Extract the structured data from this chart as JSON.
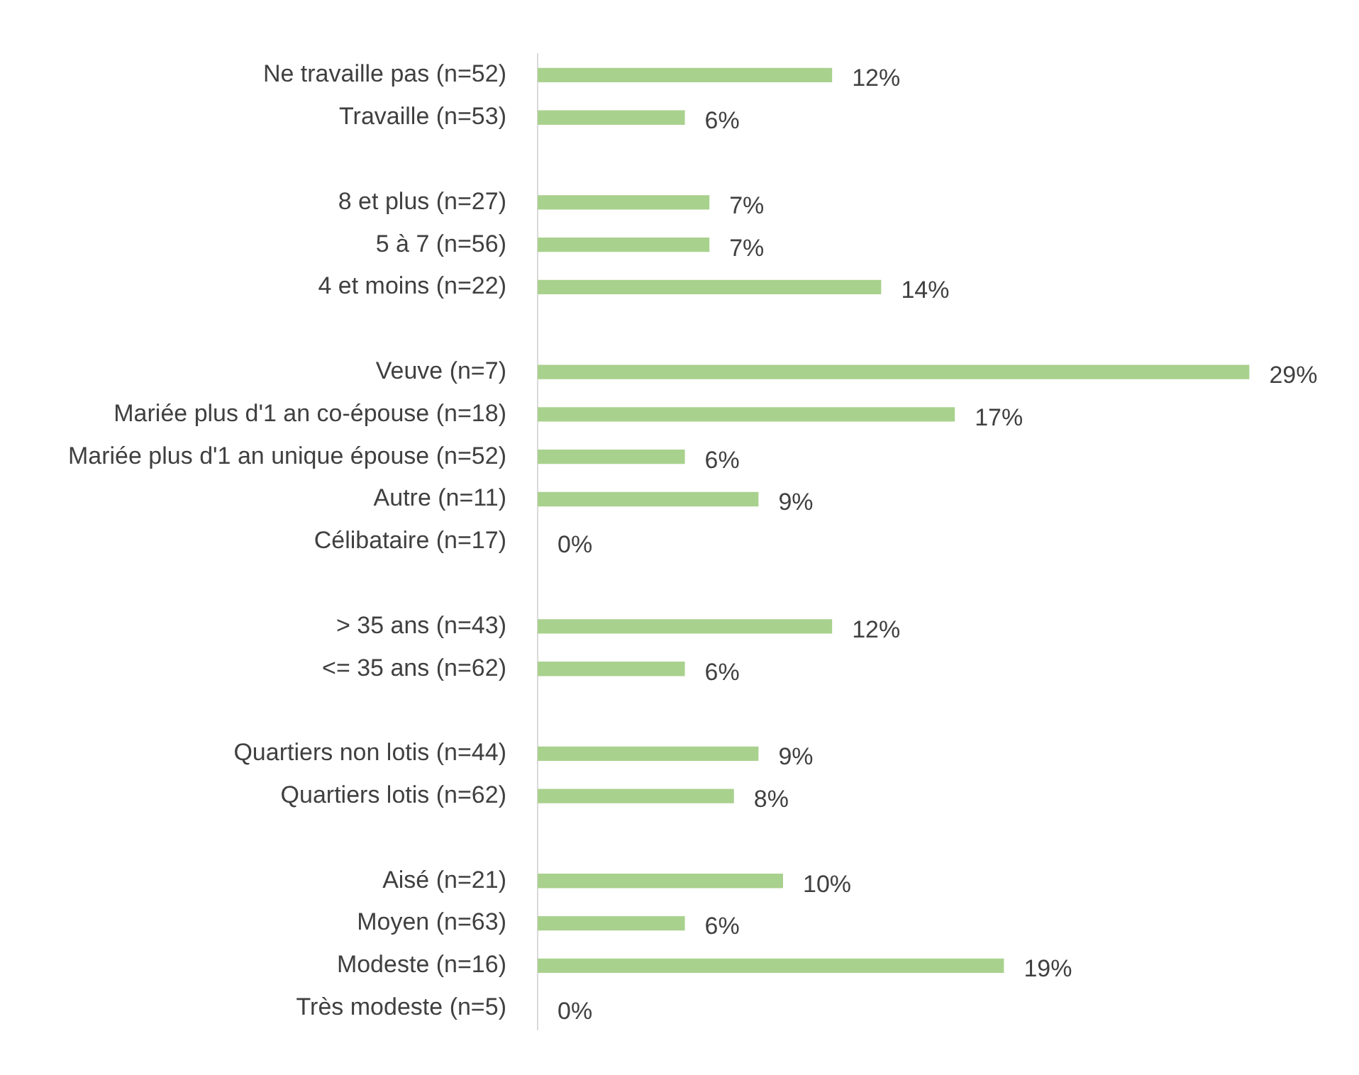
{
  "chart_data": {
    "type": "bar",
    "orientation": "horizontal",
    "tick_labels": "y",
    "categories": [
      "Ne travaille pas (n=52)",
      "Travaille (n=53)",
      null,
      "8 et plus (n=27)",
      "5 à 7 (n=56)",
      "4 et moins (n=22)",
      null,
      "Veuve (n=7)",
      "Mariée plus d'1 an co-épouse (n=18)",
      "Mariée plus d'1 an unique épouse (n=52)",
      "Autre (n=11)",
      "Célibataire (n=17)",
      null,
      "> 35 ans (n=43)",
      "<= 35 ans (n=62)",
      null,
      "Quartiers non lotis (n=44)",
      "Quartiers lotis (n=62)",
      null,
      "Aisé (n=21)",
      "Moyen (n=63)",
      "Modeste (n=16)",
      "Très modeste (n=5)"
    ],
    "values": [
      12,
      6,
      null,
      7,
      7,
      14,
      null,
      29,
      17,
      6,
      9,
      0,
      null,
      12,
      6,
      null,
      9,
      8,
      null,
      10,
      6,
      19,
      0
    ],
    "value_labels": [
      "12%",
      "6%",
      null,
      "7%",
      "7%",
      "14%",
      null,
      "29%",
      "17%",
      "6%",
      "9%",
      "0%",
      null,
      "12%",
      "6%",
      null,
      "9%",
      "8%",
      null,
      "10%",
      "6%",
      "19%",
      "0%"
    ],
    "color": "#a9d18e"
  }
}
